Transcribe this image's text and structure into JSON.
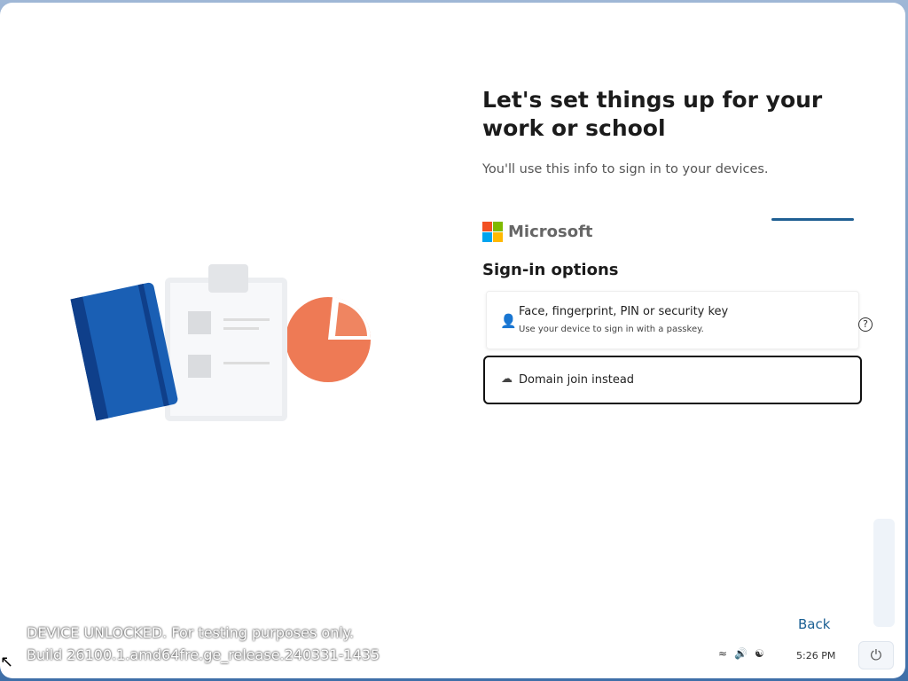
{
  "header": {
    "title": "Let's set things up for your work or school",
    "subtitle": "You'll use this info to sign in to your devices."
  },
  "brand": {
    "name": "Microsoft",
    "colors": [
      "#f25022",
      "#7fba00",
      "#00a4ef",
      "#ffb900"
    ]
  },
  "signin": {
    "heading": "Sign-in options",
    "options": [
      {
        "icon": "passkey-user-icon",
        "title": "Face, fingerprint, PIN or security key",
        "description": "Use your device to sign in with a passkey."
      },
      {
        "icon": "cloud-domain-icon",
        "title": "Domain join instead"
      }
    ]
  },
  "back_label": "Back",
  "watermark": {
    "line1": "DEVICE UNLOCKED. For testing purposes only.",
    "line2": "Build 26100.1.amd64fre.ge_release.240331-1435"
  },
  "tray": {
    "time": "5:26 PM",
    "icons": [
      "wifi-icon",
      "volume-icon",
      "accessibility-icon",
      "power-icon"
    ]
  }
}
